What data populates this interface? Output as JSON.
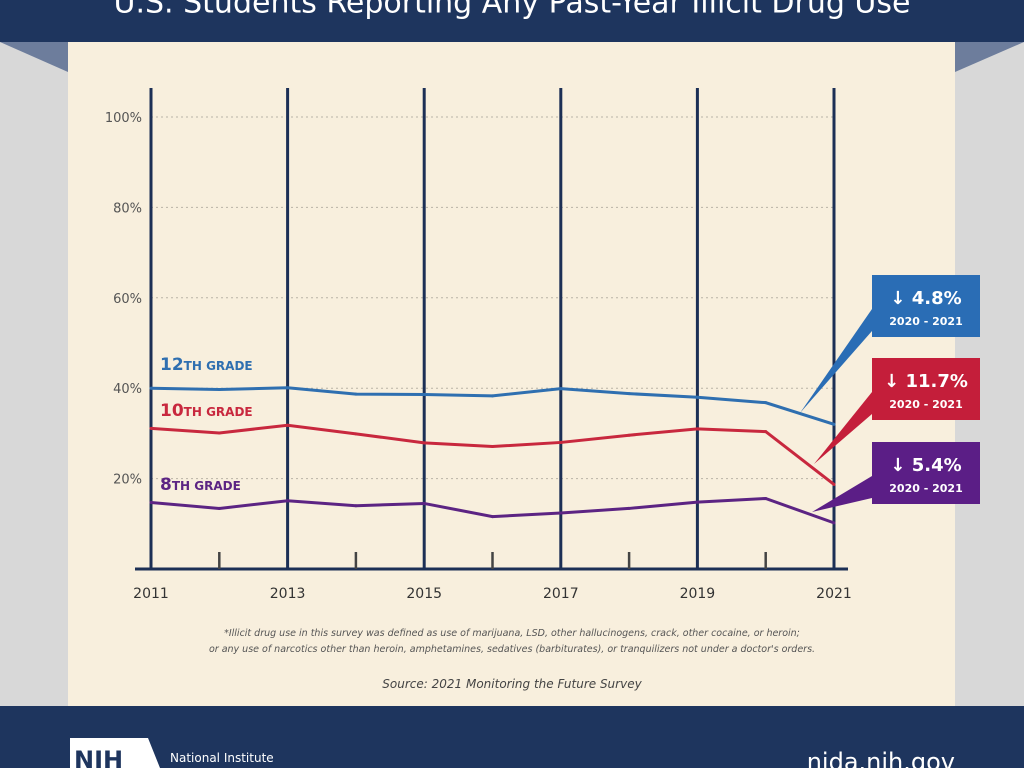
{
  "header": {
    "title": "U.S. Students Reporting Any Past-Year Illicit Drug Use"
  },
  "chart_data": {
    "type": "line",
    "title": "U.S. Students Reporting Any Past-Year Illicit Drug Use",
    "x": [
      2011,
      2012,
      2013,
      2014,
      2015,
      2016,
      2017,
      2018,
      2019,
      2020,
      2021
    ],
    "x_tick_labels": [
      "2011",
      "2013",
      "2015",
      "2017",
      "2019",
      "2021"
    ],
    "y_tick_labels": [
      "20%",
      "40%",
      "60%",
      "80%",
      "100%"
    ],
    "ylim": [
      0,
      100
    ],
    "grid": "horizontal dotted",
    "series": [
      {
        "name": "12TH GRADE",
        "num": "12",
        "suffix": "TH GRADE",
        "color": "#2f6fb0",
        "values": [
          40.0,
          39.7,
          40.1,
          38.7,
          38.6,
          38.3,
          39.9,
          38.8,
          38.0,
          36.8,
          32.0
        ]
      },
      {
        "name": "10TH GRADE",
        "num": "10",
        "suffix": "TH GRADE",
        "color": "#c8283e",
        "values": [
          31.1,
          30.1,
          31.8,
          29.9,
          27.9,
          27.1,
          28.0,
          29.6,
          31.0,
          30.4,
          18.7
        ]
      },
      {
        "name": "8TH GRADE",
        "num": "8",
        "suffix": "TH GRADE",
        "color": "#5c2483",
        "values": [
          14.7,
          13.4,
          15.1,
          14.0,
          14.5,
          11.6,
          12.4,
          13.4,
          14.8,
          15.6,
          10.2
        ]
      }
    ],
    "annotations": [
      {
        "change": "↓ 4.8%",
        "period": "2020 - 2021",
        "color": "#2a6db5"
      },
      {
        "change": "↓ 11.7%",
        "period": "2020 - 2021",
        "color": "#c41e3a"
      },
      {
        "change": "↓ 5.4%",
        "period": "2020 - 2021",
        "color": "#5b1e86"
      }
    ]
  },
  "footnote": {
    "line1": "*Illicit drug use in this survey was defined as use of marijuana, LSD, other hallucinogens, crack, other cocaine, or heroin;",
    "line2": "or any use of narcotics other than heroin, amphetamines, sedatives (barbiturates), or tranquilizers not under a doctor's orders.",
    "source": "Source: 2021 Monitoring the Future Survey"
  },
  "footer": {
    "logo": "NIH",
    "org": "National Institute",
    "url": "nida.nih.gov"
  },
  "colors": {
    "navy": "#1e355e",
    "panel": "#f8efdd",
    "axis": "#1c2f55"
  }
}
